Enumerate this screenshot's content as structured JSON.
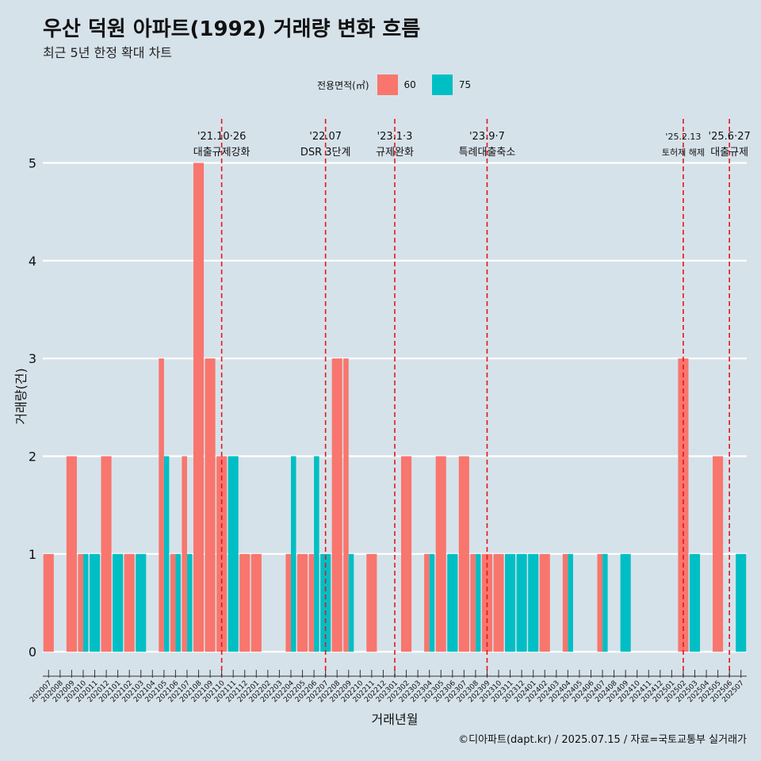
{
  "header": {
    "title": "우산 덕원 아파트(1992) 거래량 변화 흐름",
    "subtitle": "최근 5년 한정 확대 차트"
  },
  "legend": {
    "title": "전용면적(㎡)",
    "items": [
      {
        "label": "60",
        "color": "#f8766d"
      },
      {
        "label": "75",
        "color": "#00bfc4"
      }
    ]
  },
  "caption": "©디아파트(dapt.kr) / 2025.07.15 / 자료=국토교통부 실거래가",
  "chart_data": {
    "type": "bar",
    "title": "우산 덕원 아파트(1992) 거래량 변화 흐름",
    "xlabel": "거래년월",
    "ylabel": "거래량(건)",
    "ylim": [
      -0.25,
      5.45
    ],
    "yticks": [
      0,
      1,
      2,
      3,
      4,
      5
    ],
    "grid": true,
    "legend_position": "top",
    "categories": [
      "202007",
      "202008",
      "202009",
      "202010",
      "202011",
      "202012",
      "202101",
      "202102",
      "202103",
      "202104",
      "202105",
      "202106",
      "202107",
      "202108",
      "202109",
      "202110",
      "202111",
      "202112",
      "202201",
      "202202",
      "202203",
      "202204",
      "202205",
      "202206",
      "202207",
      "202208",
      "202209",
      "202210",
      "202211",
      "202212",
      "202301",
      "202302",
      "202303",
      "202304",
      "202305",
      "202306",
      "202307",
      "202308",
      "202309",
      "202310",
      "202311",
      "202312",
      "202401",
      "202402",
      "202403",
      "202404",
      "202405",
      "202406",
      "202407",
      "202408",
      "202409",
      "202410",
      "202411",
      "202412",
      "202501",
      "202502",
      "202503",
      "202504",
      "202505",
      "202506",
      "202507"
    ],
    "series": [
      {
        "name": "60",
        "color": "#f8766d",
        "values": [
          1,
          0,
          2,
          1,
          0,
          2,
          0,
          1,
          0,
          0,
          3,
          1,
          2,
          5,
          3,
          2,
          0,
          1,
          1,
          0,
          0,
          1,
          1,
          1,
          0,
          3,
          3,
          0,
          1,
          0,
          0,
          2,
          0,
          1,
          2,
          0,
          2,
          1,
          1,
          1,
          0,
          0,
          0,
          1,
          0,
          1,
          0,
          0,
          1,
          0,
          0,
          0,
          0,
          0,
          0,
          3,
          0,
          0,
          2,
          0,
          0
        ]
      },
      {
        "name": "75",
        "color": "#00bfc4",
        "values": [
          0,
          0,
          0,
          1,
          1,
          0,
          1,
          0,
          1,
          0,
          2,
          1,
          1,
          0,
          0,
          0,
          2,
          0,
          0,
          0,
          0,
          2,
          0,
          2,
          1,
          0,
          1,
          0,
          0,
          0,
          0,
          0,
          0,
          1,
          0,
          1,
          0,
          1,
          0,
          0,
          1,
          1,
          1,
          0,
          0,
          1,
          0,
          0,
          1,
          0,
          1,
          0,
          0,
          0,
          0,
          0,
          1,
          0,
          0,
          0,
          1
        ]
      }
    ],
    "annotations": [
      {
        "month": "202110",
        "date": "'21.10·26",
        "label": "대출규제강화"
      },
      {
        "month": "202207",
        "date": "'22.07",
        "label": "DSR 3단계"
      },
      {
        "month": "202301",
        "date": "'23.1·3",
        "label": "규제완화"
      },
      {
        "month": "202309",
        "date": "'23.9·7",
        "label": "특례대출축소"
      },
      {
        "month": "202502",
        "date": "'25.2.13",
        "label": "토허제 해제"
      },
      {
        "month": "202506",
        "date": "'25.6·27",
        "label": "대출규제"
      }
    ]
  }
}
